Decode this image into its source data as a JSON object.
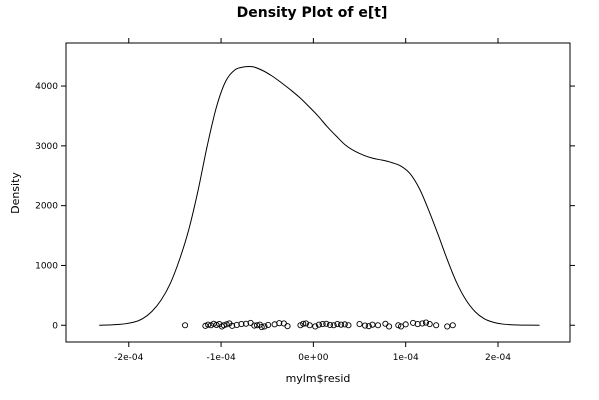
{
  "chart_data": {
    "type": "line",
    "title": "Density Plot of e[t]",
    "xlabel": "mylm$resid",
    "ylabel": "Density",
    "xlim": [
      -0.000268,
      0.000278
    ],
    "ylim": [
      -280,
      4720
    ],
    "grid": false,
    "x_ticks": [
      -0.0002,
      -0.0001,
      0,
      0.0001,
      0.0002
    ],
    "x_tick_labels": [
      "-2e-04",
      "-1e-04",
      "0e+00",
      "1e-04",
      "2e-04"
    ],
    "y_ticks": [
      0,
      1000,
      2000,
      3000,
      4000
    ],
    "y_tick_labels": [
      "0",
      "1000",
      "2000",
      "3000",
      "4000"
    ],
    "series": [
      {
        "kind": "density-curve",
        "x": [
          -0.000232,
          -0.00021,
          -0.000195,
          -0.000185,
          -0.000175,
          -0.000165,
          -0.000155,
          -0.000145,
          -0.000135,
          -0.000125,
          -0.000115,
          -0.000105,
          -9.5e-05,
          -8.5e-05,
          -7.5e-05,
          -6.5e-05,
          -5.5e-05,
          -4.5e-05,
          -3.5e-05,
          -2.5e-05,
          -1.5e-05,
          -5e-06,
          5e-06,
          1.5e-05,
          2.5e-05,
          3.5e-05,
          4.5e-05,
          5.5e-05,
          6.5e-05,
          7.5e-05,
          8.5e-05,
          9.5e-05,
          0.000105,
          0.000115,
          0.000125,
          0.000135,
          0.000145,
          0.000155,
          0.000165,
          0.000175,
          0.000185,
          0.000195,
          0.000205,
          0.000215,
          0.000225,
          0.000245
        ],
        "y": [
          0,
          15,
          50,
          110,
          230,
          420,
          700,
          1100,
          1600,
          2250,
          3000,
          3650,
          4080,
          4270,
          4320,
          4320,
          4260,
          4170,
          4060,
          3940,
          3810,
          3660,
          3500,
          3320,
          3160,
          3010,
          2910,
          2840,
          2790,
          2760,
          2720,
          2660,
          2530,
          2280,
          1920,
          1520,
          1100,
          720,
          430,
          230,
          110,
          50,
          20,
          8,
          3,
          0
        ]
      },
      {
        "kind": "rug-points",
        "x": [
          -0.000139,
          -0.000117,
          -0.000114,
          -0.000111,
          -0.000108,
          -0.000105,
          -0.000102,
          -9.9e-05,
          -9.7e-05,
          -9.4e-05,
          -9.1e-05,
          -8.8e-05,
          -8.3e-05,
          -7.8e-05,
          -7.3e-05,
          -6.8e-05,
          -6.4e-05,
          -6.1e-05,
          -5.8e-05,
          -5.6e-05,
          -5.3e-05,
          -4.9e-05,
          -4.2e-05,
          -3.7e-05,
          -3.2e-05,
          -2.8e-05,
          -1.4e-05,
          -1.1e-05,
          -8e-06,
          -4e-06,
          2e-06,
          6e-06,
          1e-05,
          1.4e-05,
          1.8e-05,
          2.2e-05,
          2.6e-05,
          3e-05,
          3.4e-05,
          3.8e-05,
          5e-05,
          5.6e-05,
          6e-05,
          6.4e-05,
          7e-05,
          7.8e-05,
          8.2e-05,
          9.2e-05,
          9.5e-05,
          0.0001,
          0.000108,
          0.000113,
          0.000118,
          0.000122,
          0.000126,
          0.000133,
          0.000145,
          0.000151
        ],
        "y": [
          0,
          -10,
          10,
          0,
          25,
          5,
          20,
          -20,
          0,
          15,
          30,
          -10,
          5,
          20,
          25,
          40,
          -5,
          0,
          10,
          -30,
          -20,
          5,
          15,
          35,
          30,
          -15,
          0,
          25,
          30,
          0,
          -20,
          10,
          20,
          25,
          5,
          0,
          20,
          10,
          15,
          0,
          20,
          -5,
          -15,
          10,
          0,
          25,
          -20,
          0,
          -20,
          15,
          40,
          20,
          30,
          45,
          20,
          0,
          -20,
          0
        ]
      }
    ]
  }
}
